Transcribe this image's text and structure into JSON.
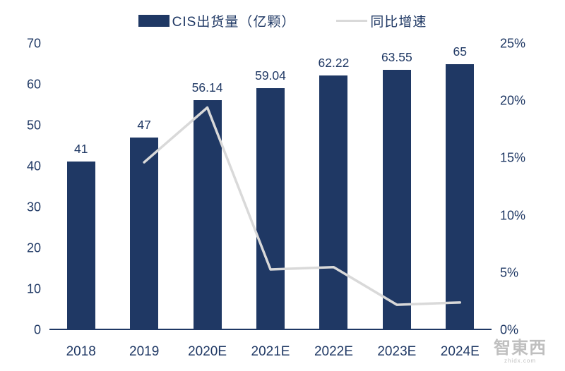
{
  "colors": {
    "bar": "#1f3864",
    "line": "#d9d9d9",
    "text": "#1f3864",
    "axis": "#1f3864",
    "watermark": "#bfbfbf"
  },
  "watermark": {
    "line1": "智東西",
    "line2": "zhidx.com"
  },
  "chart_data": {
    "type": "combo",
    "title": "",
    "categories": [
      "2018",
      "2019",
      "2020E",
      "2021E",
      "2022E",
      "2023E",
      "2024E"
    ],
    "series": [
      {
        "name": "CIS出货量（亿颗）",
        "type": "bar",
        "axis": "left",
        "values": [
          41,
          47,
          56.14,
          59.04,
          62.22,
          63.55,
          65
        ],
        "labels": [
          "41",
          "47",
          "56.14",
          "59.04",
          "62.22",
          "63.55",
          "65"
        ],
        "color": "#1f3864"
      },
      {
        "name": "同比增速",
        "type": "line",
        "axis": "right",
        "values": [
          null,
          14.6,
          19.4,
          5.2,
          5.4,
          2.1,
          2.3
        ],
        "color": "#d9d9d9"
      }
    ],
    "left_axis": {
      "min": 0,
      "max": 70,
      "step": 10,
      "ticks": [
        "0",
        "10",
        "20",
        "30",
        "40",
        "50",
        "60",
        "70"
      ]
    },
    "right_axis": {
      "min": 0,
      "max": 25,
      "step": 5,
      "ticks": [
        "0%",
        "5%",
        "10%",
        "15%",
        "20%",
        "25%"
      ]
    },
    "legend_position": "top",
    "grid": false
  }
}
